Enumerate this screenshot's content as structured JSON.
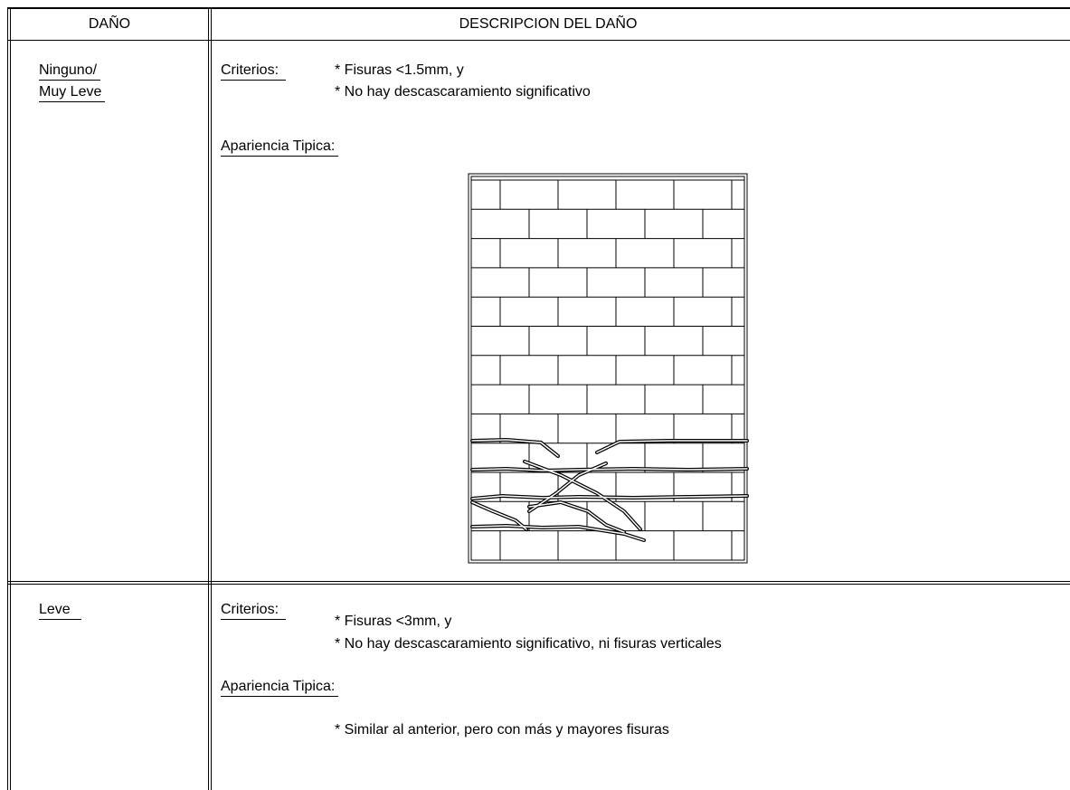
{
  "header": {
    "damage": "DAÑO",
    "description": "DESCRIPCION DEL DAÑO"
  },
  "rows": [
    {
      "damage": [
        "Ninguno/",
        "Muy Leve"
      ],
      "criteria_label": "Criterios:",
      "criteria": [
        "* Fisuras <1.5mm, y",
        "* No hay descascaramiento significativo"
      ],
      "appearance_label": "Apariencia Tipica:"
    },
    {
      "damage": [
        "Leve"
      ],
      "criteria_label": "Criterios:",
      "criteria": [
        "* Fisuras <3mm, y",
        "* No hay descascaramiento significativo, ni fisuras verticales"
      ],
      "appearance_label": "Apariencia Tipica:",
      "note": "* Similar al anterior, pero con más y mayores fisuras"
    }
  ]
}
